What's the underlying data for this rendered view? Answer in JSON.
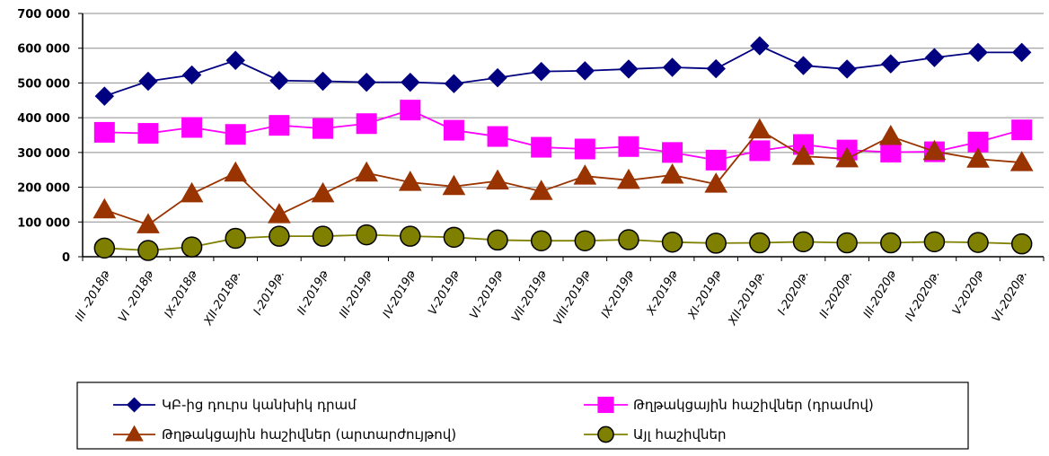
{
  "chart_data": {
    "type": "line",
    "title": "",
    "xlabel": "",
    "ylabel": "",
    "ylim": [
      0,
      700000
    ],
    "yticks": [
      0,
      100000,
      200000,
      300000,
      400000,
      500000,
      600000,
      700000
    ],
    "ytick_labels": [
      "0",
      "100 000",
      "200 000",
      "300 000",
      "400 000",
      "500 000",
      "600 000",
      "700 000"
    ],
    "grid": "horizontal",
    "legend_position": "bottom",
    "categories": [
      "III -2018թ",
      "VI -2018թ",
      "IX-2018թ",
      "XII-2018թ.",
      "I-2019թ.",
      "II-2019թ",
      "III-2019թ",
      "IV-2019թ",
      "V-2019թ",
      "VI-2019թ",
      "VII-2019թ",
      "VIII-2019թ",
      "IX-2019թ",
      "X-2019թ",
      "XI-2019թ",
      "XII-2019թ.",
      "I-2020թ.",
      "II-2020թ.",
      "III-2020թ",
      "IV-2020թ.",
      "V-2020թ",
      "VI-2020թ."
    ],
    "series": [
      {
        "name": "ԿԲ-ից դուրս կանխիկ դրամ",
        "color": "#000080",
        "marker": "diamond",
        "values": [
          462000,
          505000,
          523000,
          565000,
          507000,
          505000,
          502000,
          502000,
          498000,
          515000,
          533000,
          535000,
          540000,
          545000,
          541000,
          607000,
          550000,
          540000,
          555000,
          573000,
          588000,
          588000
        ]
      },
      {
        "name": "Թղթակցային հաշիվներ (դրամով)",
        "color": "#FF00FF",
        "marker": "square",
        "values": [
          358000,
          355000,
          372000,
          352000,
          378000,
          369000,
          383000,
          422000,
          364000,
          346000,
          315000,
          310000,
          317000,
          300000,
          278000,
          305000,
          323000,
          307000,
          301000,
          302000,
          330000,
          365000
        ]
      },
      {
        "name": "Թղթակցային հաշիվներ (արտարժույթով)",
        "color": "#993300",
        "marker": "triangle",
        "values": [
          135000,
          92000,
          181000,
          241000,
          121000,
          181000,
          241000,
          214000,
          202000,
          218000,
          188000,
          232000,
          220000,
          235000,
          209000,
          365000,
          289000,
          282000,
          346000,
          303000,
          281000,
          271000
        ]
      },
      {
        "name": "Այլ հաշիվներ",
        "color": "#808000",
        "marker": "circle",
        "values": [
          25000,
          18000,
          28000,
          53000,
          59000,
          59000,
          63000,
          59000,
          56000,
          48000,
          46000,
          46000,
          49000,
          42000,
          39000,
          40000,
          43000,
          40000,
          40000,
          43000,
          41000,
          37000
        ]
      }
    ]
  }
}
